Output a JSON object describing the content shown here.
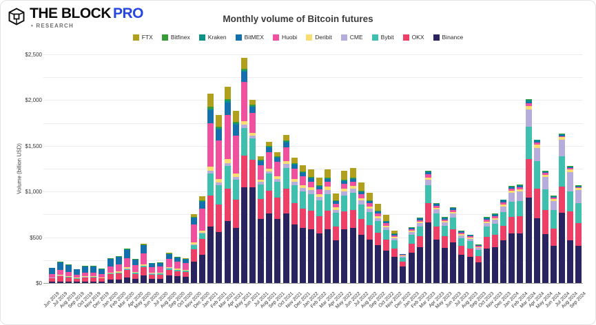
{
  "header": {
    "brand": "THE BLOCK",
    "brand_suffix": "PRO",
    "research": "• RESEARCH"
  },
  "title": "Monthly volume of Bitcoin futures",
  "y_axis": {
    "label": "Volume (billion USD)",
    "ticks": [
      {
        "label": "$0",
        "value": 0
      },
      {
        "label": "$500",
        "value": 500
      },
      {
        "label": "$1,000",
        "value": 1000
      },
      {
        "label": "$1,500",
        "value": 1500
      },
      {
        "label": "$2,000",
        "value": 2000
      },
      {
        "label": "$2,500",
        "value": 2500
      }
    ]
  },
  "chart_data": {
    "type": "bar",
    "stacked": true,
    "title": "Monthly volume of Bitcoin futures",
    "ylabel": "Volume (billion USD)",
    "ylim": [
      0,
      2500
    ],
    "grid_step": 250,
    "legend_position": "top",
    "legend_order": [
      "FTX",
      "Bitfinex",
      "Kraken",
      "BitMEX",
      "Huobi",
      "Deribit",
      "CME",
      "Bybit",
      "OKX",
      "Binance"
    ],
    "categories": [
      "Jun 2019",
      "Jul 2019",
      "Aug 2019",
      "Sep 2019",
      "Oct 2019",
      "Nov 2019",
      "Dec 2019",
      "Jan 2020",
      "Feb 2020",
      "Mar 2020",
      "Apr 2020",
      "May 2020",
      "Jun 2020",
      "Jul 2020",
      "Aug 2020",
      "Sep 2020",
      "Oct 2020",
      "Nov 2020",
      "Dec 2020",
      "Jan 2021",
      "Feb 2021",
      "Mar 2021",
      "Apr 2021",
      "May 2021",
      "Jun 2021",
      "Jul 2021",
      "Aug 2021",
      "Sep 2021",
      "Oct 2021",
      "Nov 2021",
      "Dec 2021",
      "Jan 2022",
      "Feb 2022",
      "Mar 2022",
      "Apr 2022",
      "May 2022",
      "Jun 2022",
      "Jul 2022",
      "Aug 2022",
      "Sep 2022",
      "Oct 2022",
      "Nov 2022",
      "Dec 2022",
      "Jan 2023",
      "Feb 2023",
      "Mar 2023",
      "Apr 2023",
      "May 2023",
      "Jun 2023",
      "Jul 2023",
      "Aug 2023",
      "Sep 2023",
      "Oct 2023",
      "Nov 2023",
      "Dec 2023",
      "Jan 2024",
      "Feb 2024",
      "Mar 2024",
      "Apr 2024",
      "May 2024",
      "Jun 2024",
      "Jul 2024",
      "Aug 2024",
      "Sep 2024"
    ],
    "series": [
      {
        "name": "Binance",
        "color": "#29235f",
        "values": [
          12,
          18,
          16,
          12,
          15,
          16,
          14,
          35,
          40,
          60,
          45,
          80,
          45,
          48,
          80,
          72,
          70,
          230,
          310,
          620,
          560,
          680,
          600,
          1050,
          1050,
          700,
          760,
          700,
          760,
          640,
          600,
          590,
          545,
          590,
          465,
          585,
          600,
          525,
          472,
          412,
          355,
          285,
          179,
          333,
          391,
          660,
          471,
          387,
          446,
          306,
          284,
          225,
          380,
          395,
          470,
          540,
          545,
          935,
          707,
          532,
          410,
          768,
          464,
          410
        ]
      },
      {
        "name": "OKX",
        "color": "#ee4066",
        "values": [
          40,
          55,
          48,
          36,
          44,
          44,
          37,
          62,
          66,
          82,
          56,
          90,
          46,
          46,
          64,
          55,
          50,
          140,
          170,
          340,
          300,
          350,
          310,
          345,
          300,
          220,
          250,
          235,
          270,
          230,
          215,
          200,
          185,
          200,
          155,
          195,
          200,
          175,
          158,
          138,
          118,
          95,
          52,
          100,
          118,
          210,
          148,
          122,
          140,
          97,
          90,
          71,
          122,
          130,
          156,
          180,
          182,
          420,
          327,
          266,
          185,
          290,
          320,
          245
        ]
      },
      {
        "name": "Bybit",
        "color": "#3fc0af",
        "values": [
          4,
          6,
          5,
          4,
          5,
          5,
          4,
          8,
          9,
          12,
          9,
          16,
          9,
          10,
          16,
          15,
          14,
          45,
          62,
          235,
          210,
          250,
          220,
          300,
          230,
          160,
          185,
          175,
          230,
          200,
          190,
          185,
          170,
          185,
          145,
          180,
          185,
          162,
          146,
          128,
          110,
          88,
          48,
          95,
          112,
          200,
          140,
          115,
          132,
          90,
          84,
          66,
          116,
          124,
          150,
          170,
          172,
          355,
          300,
          228,
          200,
          330,
          215,
          220
        ]
      },
      {
        "name": "CME",
        "color": "#b6addd",
        "values": [
          1,
          1,
          1,
          1,
          1,
          1,
          1,
          2,
          2,
          3,
          2,
          3,
          2,
          2,
          3,
          3,
          3,
          8,
          10,
          30,
          28,
          32,
          30,
          35,
          30,
          25,
          28,
          28,
          40,
          38,
          36,
          42,
          40,
          44,
          36,
          44,
          45,
          40,
          36,
          32,
          28,
          22,
          12,
          28,
          32,
          60,
          44,
          36,
          42,
          29,
          27,
          22,
          40,
          46,
          62,
          95,
          100,
          185,
          145,
          135,
          105,
          175,
          215,
          140
        ]
      },
      {
        "name": "Deribit",
        "color": "#fadd71",
        "values": [
          6,
          8,
          7,
          6,
          7,
          7,
          6,
          10,
          11,
          14,
          10,
          15,
          8,
          8,
          11,
          10,
          9,
          20,
          24,
          45,
          40,
          45,
          40,
          40,
          30,
          25,
          28,
          26,
          35,
          32,
          30,
          32,
          30,
          32,
          26,
          30,
          30,
          27,
          24,
          21,
          18,
          14,
          8,
          14,
          16,
          26,
          18,
          15,
          17,
          12,
          11,
          9,
          15,
          16,
          20,
          25,
          26,
          40,
          32,
          25,
          22,
          30,
          28,
          22
        ]
      },
      {
        "name": "Huobi",
        "color": "#f0519f",
        "values": [
          38,
          52,
          45,
          34,
          42,
          42,
          35,
          68,
          74,
          100,
          72,
          120,
          62,
          64,
          92,
          80,
          74,
          200,
          240,
          480,
          420,
          480,
          410,
          430,
          220,
          160,
          180,
          160,
          150,
          110,
          95,
          60,
          52,
          55,
          40,
          48,
          48,
          40,
          36,
          30,
          26,
          18,
          10,
          18,
          20,
          34,
          24,
          20,
          23,
          16,
          15,
          12,
          20,
          21,
          26,
          22,
          22,
          30,
          25,
          17,
          14,
          15,
          14,
          12
        ]
      },
      {
        "name": "BitMEX",
        "color": "#1470ad",
        "values": [
          62,
          85,
          75,
          56,
          68,
          67,
          56,
          80,
          82,
          92,
          62,
          90,
          42,
          40,
          50,
          42,
          38,
          70,
          75,
          140,
          120,
          140,
          120,
          110,
          65,
          45,
          50,
          45,
          55,
          45,
          42,
          35,
          32,
          33,
          26,
          30,
          30,
          26,
          23,
          20,
          17,
          12,
          7,
          14,
          16,
          24,
          18,
          15,
          18,
          12,
          11,
          9,
          16,
          17,
          20,
          12,
          12,
          15,
          12,
          8,
          7,
          8,
          7,
          6
        ]
      },
      {
        "name": "Kraken",
        "color": "#0d9186",
        "values": [
          2,
          2,
          2,
          2,
          2,
          2,
          2,
          3,
          3,
          4,
          3,
          4,
          2,
          2,
          3,
          3,
          3,
          6,
          8,
          15,
          14,
          16,
          14,
          16,
          12,
          8,
          9,
          8,
          10,
          9,
          8,
          8,
          7,
          8,
          6,
          7,
          7,
          6,
          5,
          5,
          4,
          3,
          2,
          4,
          5,
          8,
          6,
          5,
          6,
          4,
          4,
          3,
          5,
          5,
          5,
          14,
          14,
          22,
          16,
          10,
          8,
          14,
          12,
          10
        ]
      },
      {
        "name": "Bitfinex",
        "color": "#379b37",
        "values": [
          5,
          8,
          6,
          4,
          6,
          6,
          5,
          7,
          8,
          8,
          6,
          8,
          4,
          4,
          5,
          4,
          4,
          8,
          9,
          20,
          18,
          22,
          18,
          19,
          13,
          7,
          10,
          8,
          10,
          9,
          8,
          8,
          7,
          8,
          6,
          8,
          8,
          7,
          6,
          5,
          4,
          3,
          2,
          4,
          5,
          8,
          6,
          5,
          6,
          4,
          4,
          3,
          6,
          6,
          6,
          7,
          7,
          8,
          6,
          4,
          4,
          5,
          5,
          5
        ]
      },
      {
        "name": "FTX",
        "color": "#b0a01e",
        "values": [
          0,
          0,
          0,
          0,
          0,
          0,
          0,
          0,
          0,
          0,
          0,
          4,
          0,
          1,
          6,
          6,
          5,
          28,
          42,
          150,
          130,
          135,
          118,
          115,
          55,
          40,
          45,
          45,
          60,
          62,
          61,
          85,
          82,
          90,
          75,
          98,
          102,
          92,
          84,
          74,
          65,
          30,
          0,
          0,
          0,
          0,
          0,
          0,
          0,
          0,
          0,
          0,
          0,
          0,
          0,
          0,
          0,
          0,
          0,
          0,
          0,
          0,
          0,
          0
        ]
      }
    ]
  }
}
